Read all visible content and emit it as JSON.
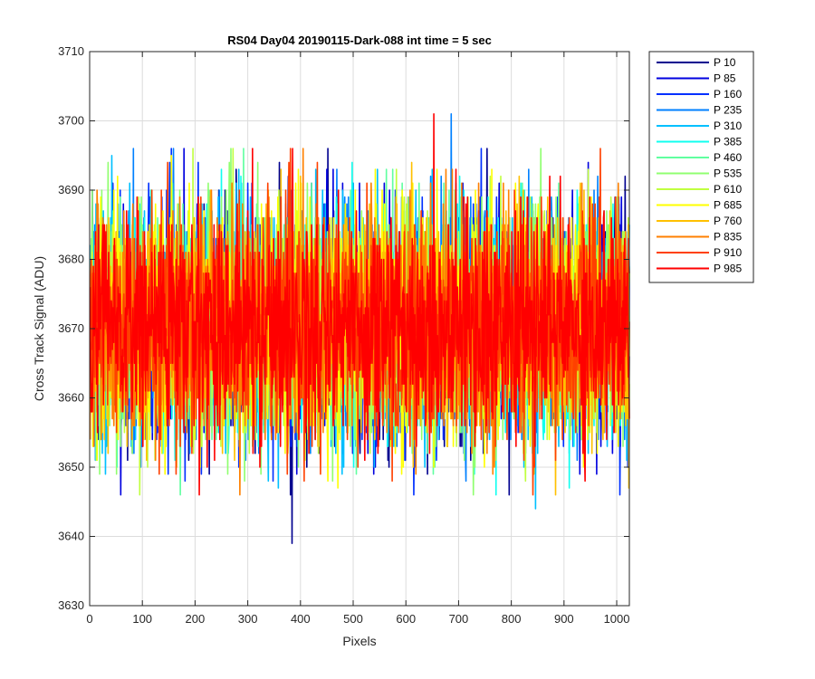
{
  "chart_data": {
    "type": "line",
    "title": "RS04 Day04 20190115-Dark-088 int time = 5 sec",
    "xlabel": "Pixels",
    "ylabel": "Cross Track Signal (ADU)",
    "xlim": [
      0,
      1024
    ],
    "ylim": [
      3630,
      3710
    ],
    "xticks": [
      0,
      100,
      200,
      300,
      400,
      500,
      600,
      700,
      800,
      900,
      1000
    ],
    "yticks": [
      3630,
      3640,
      3650,
      3660,
      3670,
      3680,
      3690,
      3700,
      3710
    ],
    "grid": true,
    "legend_position": "outside-top-right",
    "noise": {
      "mean": 3670.5,
      "approx_std": 8,
      "n_points": 1024
    },
    "notable_points": [
      {
        "series": "P 10",
        "x": 383,
        "y": 3699
      },
      {
        "series": "P 10",
        "x": 383,
        "y": 3639
      },
      {
        "series": "P 235",
        "x": 685,
        "y": 3701
      },
      {
        "series": "P 985",
        "x": 652,
        "y": 3701
      },
      {
        "series": "P 310",
        "x": 845,
        "y": 3644
      }
    ],
    "series": [
      {
        "name": "P 10",
        "color": "#00008f"
      },
      {
        "name": "P 85",
        "color": "#0000df"
      },
      {
        "name": "P 160",
        "color": "#0030ff"
      },
      {
        "name": "P 235",
        "color": "#0080ff"
      },
      {
        "name": "P 310",
        "color": "#00c0ff"
      },
      {
        "name": "P 385",
        "color": "#10ffef"
      },
      {
        "name": "P 460",
        "color": "#60ffa0"
      },
      {
        "name": "P 535",
        "color": "#90ff70"
      },
      {
        "name": "P 610",
        "color": "#c0ff40"
      },
      {
        "name": "P 685",
        "color": "#ffff00"
      },
      {
        "name": "P 760",
        "color": "#ffc000"
      },
      {
        "name": "P 835",
        "color": "#ff8000"
      },
      {
        "name": "P 910",
        "color": "#ff4000"
      },
      {
        "name": "P 985",
        "color": "#ff0000"
      }
    ]
  }
}
